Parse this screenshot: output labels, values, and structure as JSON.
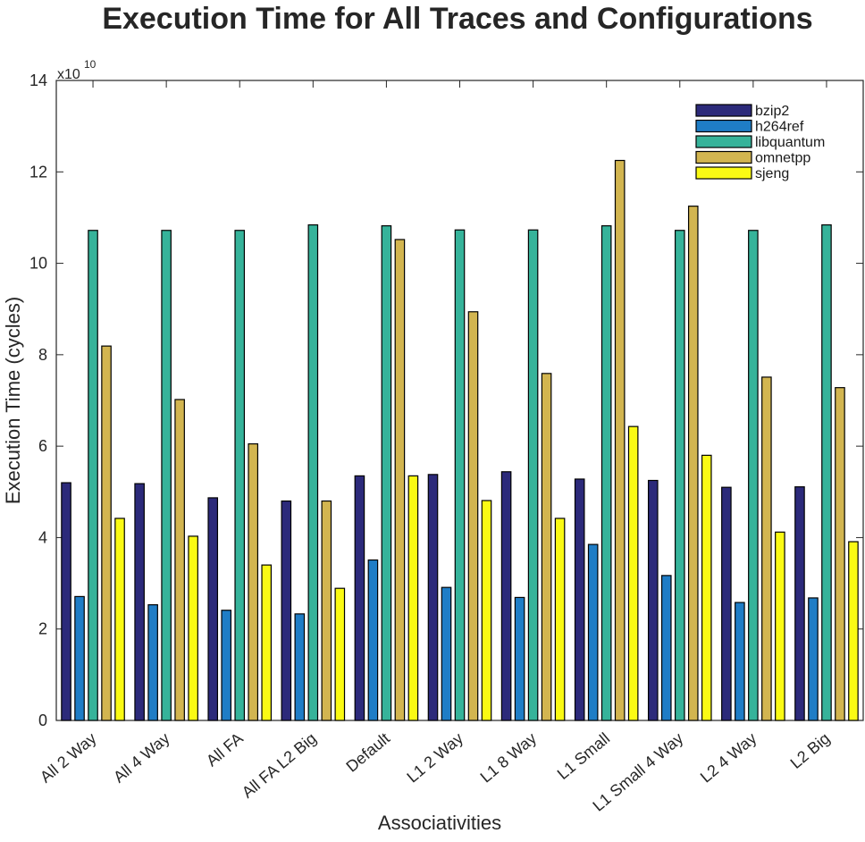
{
  "chart_data": {
    "type": "bar",
    "title": "Execution Time for All Traces and Configurations",
    "xlabel": "Associativities",
    "ylabel": "Execution Time (cycles)",
    "y_multiplier_base": "x10",
    "y_multiplier_exponent": "10",
    "ylim": [
      0,
      14
    ],
    "yticks": [
      0,
      2,
      4,
      6,
      8,
      10,
      12,
      14
    ],
    "grid": false,
    "legend_position": "top-right",
    "categories": [
      "All 2 Way",
      "All 4 Way",
      "All FA",
      "All FA L2 Big",
      "Default",
      "L1 2 Way",
      "L1 8 Way",
      "L1 Small",
      "L1 Small 4 Way",
      "L2 4 Way",
      "L2 Big"
    ],
    "series": [
      {
        "name": "bzip2",
        "color": "#2c2a7a",
        "values": [
          5.2,
          5.18,
          4.87,
          4.8,
          5.35,
          5.38,
          5.44,
          5.28,
          5.25,
          5.1,
          5.11
        ]
      },
      {
        "name": "h264ref",
        "color": "#1f7dc6",
        "values": [
          2.71,
          2.53,
          2.41,
          2.33,
          3.51,
          2.91,
          2.69,
          3.85,
          3.17,
          2.58,
          2.68
        ]
      },
      {
        "name": "libquantum",
        "color": "#36b39a",
        "values": [
          10.72,
          10.72,
          10.72,
          10.84,
          10.82,
          10.73,
          10.73,
          10.82,
          10.72,
          10.72,
          10.84
        ]
      },
      {
        "name": "omnetpp",
        "color": "#d2b550",
        "values": [
          8.19,
          7.02,
          6.05,
          4.8,
          10.52,
          8.94,
          7.59,
          12.25,
          11.25,
          7.51,
          7.28
        ]
      },
      {
        "name": "sjeng",
        "color": "#fafa14",
        "values": [
          4.42,
          4.03,
          3.4,
          2.89,
          5.35,
          4.81,
          4.42,
          6.43,
          5.8,
          4.12,
          3.91
        ]
      }
    ]
  }
}
